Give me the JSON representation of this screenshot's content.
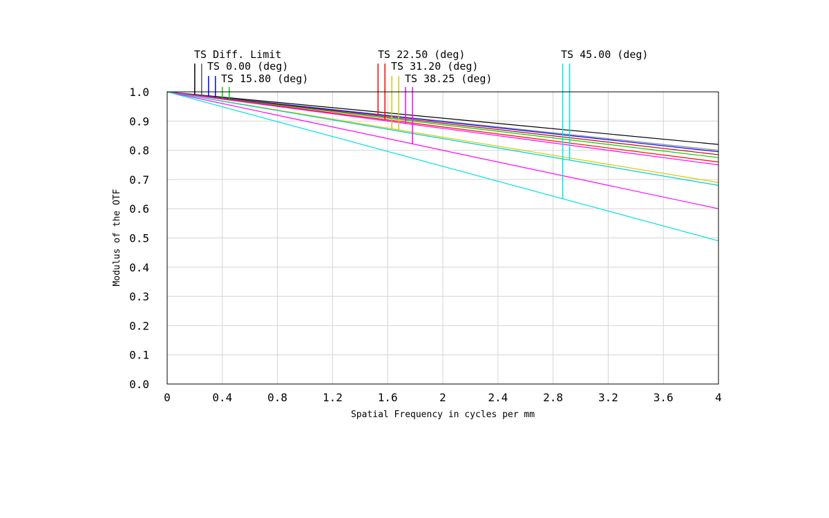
{
  "chart_data": {
    "type": "line",
    "xlabel": "Spatial Frequency in cycles per mm",
    "ylabel": "Modulus of the OTF",
    "xlim": [
      0,
      4
    ],
    "ylim": [
      0,
      1
    ],
    "x_ticks": [
      "0",
      "0.4",
      "0.8",
      "1.2",
      "1.6",
      "2",
      "2.4",
      "2.8",
      "3.2",
      "3.6",
      "4"
    ],
    "y_ticks": [
      "0.0",
      "0.1",
      "0.2",
      "0.3",
      "0.4",
      "0.5",
      "0.6",
      "0.7",
      "0.8",
      "0.9",
      "1.0"
    ],
    "grid": true,
    "legend_labels": [
      "TS Diff. Limit",
      "TS 0.00 (deg)",
      "TS 15.80 (deg)",
      "TS 22.50 (deg)",
      "TS 31.20 (deg)",
      "TS 38.25 (deg)",
      "TS 45.00 (deg)"
    ],
    "series": [
      {
        "color": "#000000",
        "x": [
          0,
          4
        ],
        "y": [
          1.0,
          0.82
        ]
      },
      {
        "color": "#888888",
        "x": [
          0,
          4
        ],
        "y": [
          1.0,
          0.8
        ]
      },
      {
        "color": "#0000ff",
        "x": [
          0,
          4
        ],
        "y": [
          1.0,
          0.795
        ]
      },
      {
        "color": "#cc0000",
        "x": [
          0,
          4
        ],
        "y": [
          1.0,
          0.785
        ]
      },
      {
        "color": "#00cc00",
        "x": [
          0,
          4
        ],
        "y": [
          1.0,
          0.775
        ]
      },
      {
        "color": "#ff0000",
        "x": [
          0,
          4
        ],
        "y": [
          1.0,
          0.76
        ]
      },
      {
        "color": "#ff00ff",
        "x": [
          0,
          4
        ],
        "y": [
          1.0,
          0.75
        ]
      },
      {
        "color": "#cccc00",
        "x": [
          0,
          4
        ],
        "y": [
          1.0,
          0.69
        ]
      },
      {
        "color": "#00cccc",
        "x": [
          0,
          4
        ],
        "y": [
          1.0,
          0.68
        ]
      },
      {
        "color": "#ff00ff",
        "x": [
          0,
          4
        ],
        "y": [
          1.0,
          0.6
        ]
      },
      {
        "color": "#00e0e0",
        "x": [
          0,
          4
        ],
        "y": [
          1.0,
          0.49
        ]
      }
    ],
    "markers": [
      {
        "color": "#000000",
        "x": 0.2
      },
      {
        "color": "#555555",
        "x": 0.25
      },
      {
        "color": "#0000ff",
        "x": 0.3
      },
      {
        "color": "#0000ff",
        "x": 0.35
      },
      {
        "color": "#00cc00",
        "x": 0.4
      },
      {
        "color": "#00cc00",
        "x": 0.45
      },
      {
        "color": "#ff0000",
        "x": 1.53
      },
      {
        "color": "#ff0000",
        "x": 1.58
      },
      {
        "color": "#cccc00",
        "x": 1.63
      },
      {
        "color": "#cccc00",
        "x": 1.68
      },
      {
        "color": "#ff00ff",
        "x": 1.73
      },
      {
        "color": "#ff00ff",
        "x": 1.78
      },
      {
        "color": "#00e0e0",
        "x": 2.87
      },
      {
        "color": "#00e0e0",
        "x": 2.92
      }
    ]
  }
}
